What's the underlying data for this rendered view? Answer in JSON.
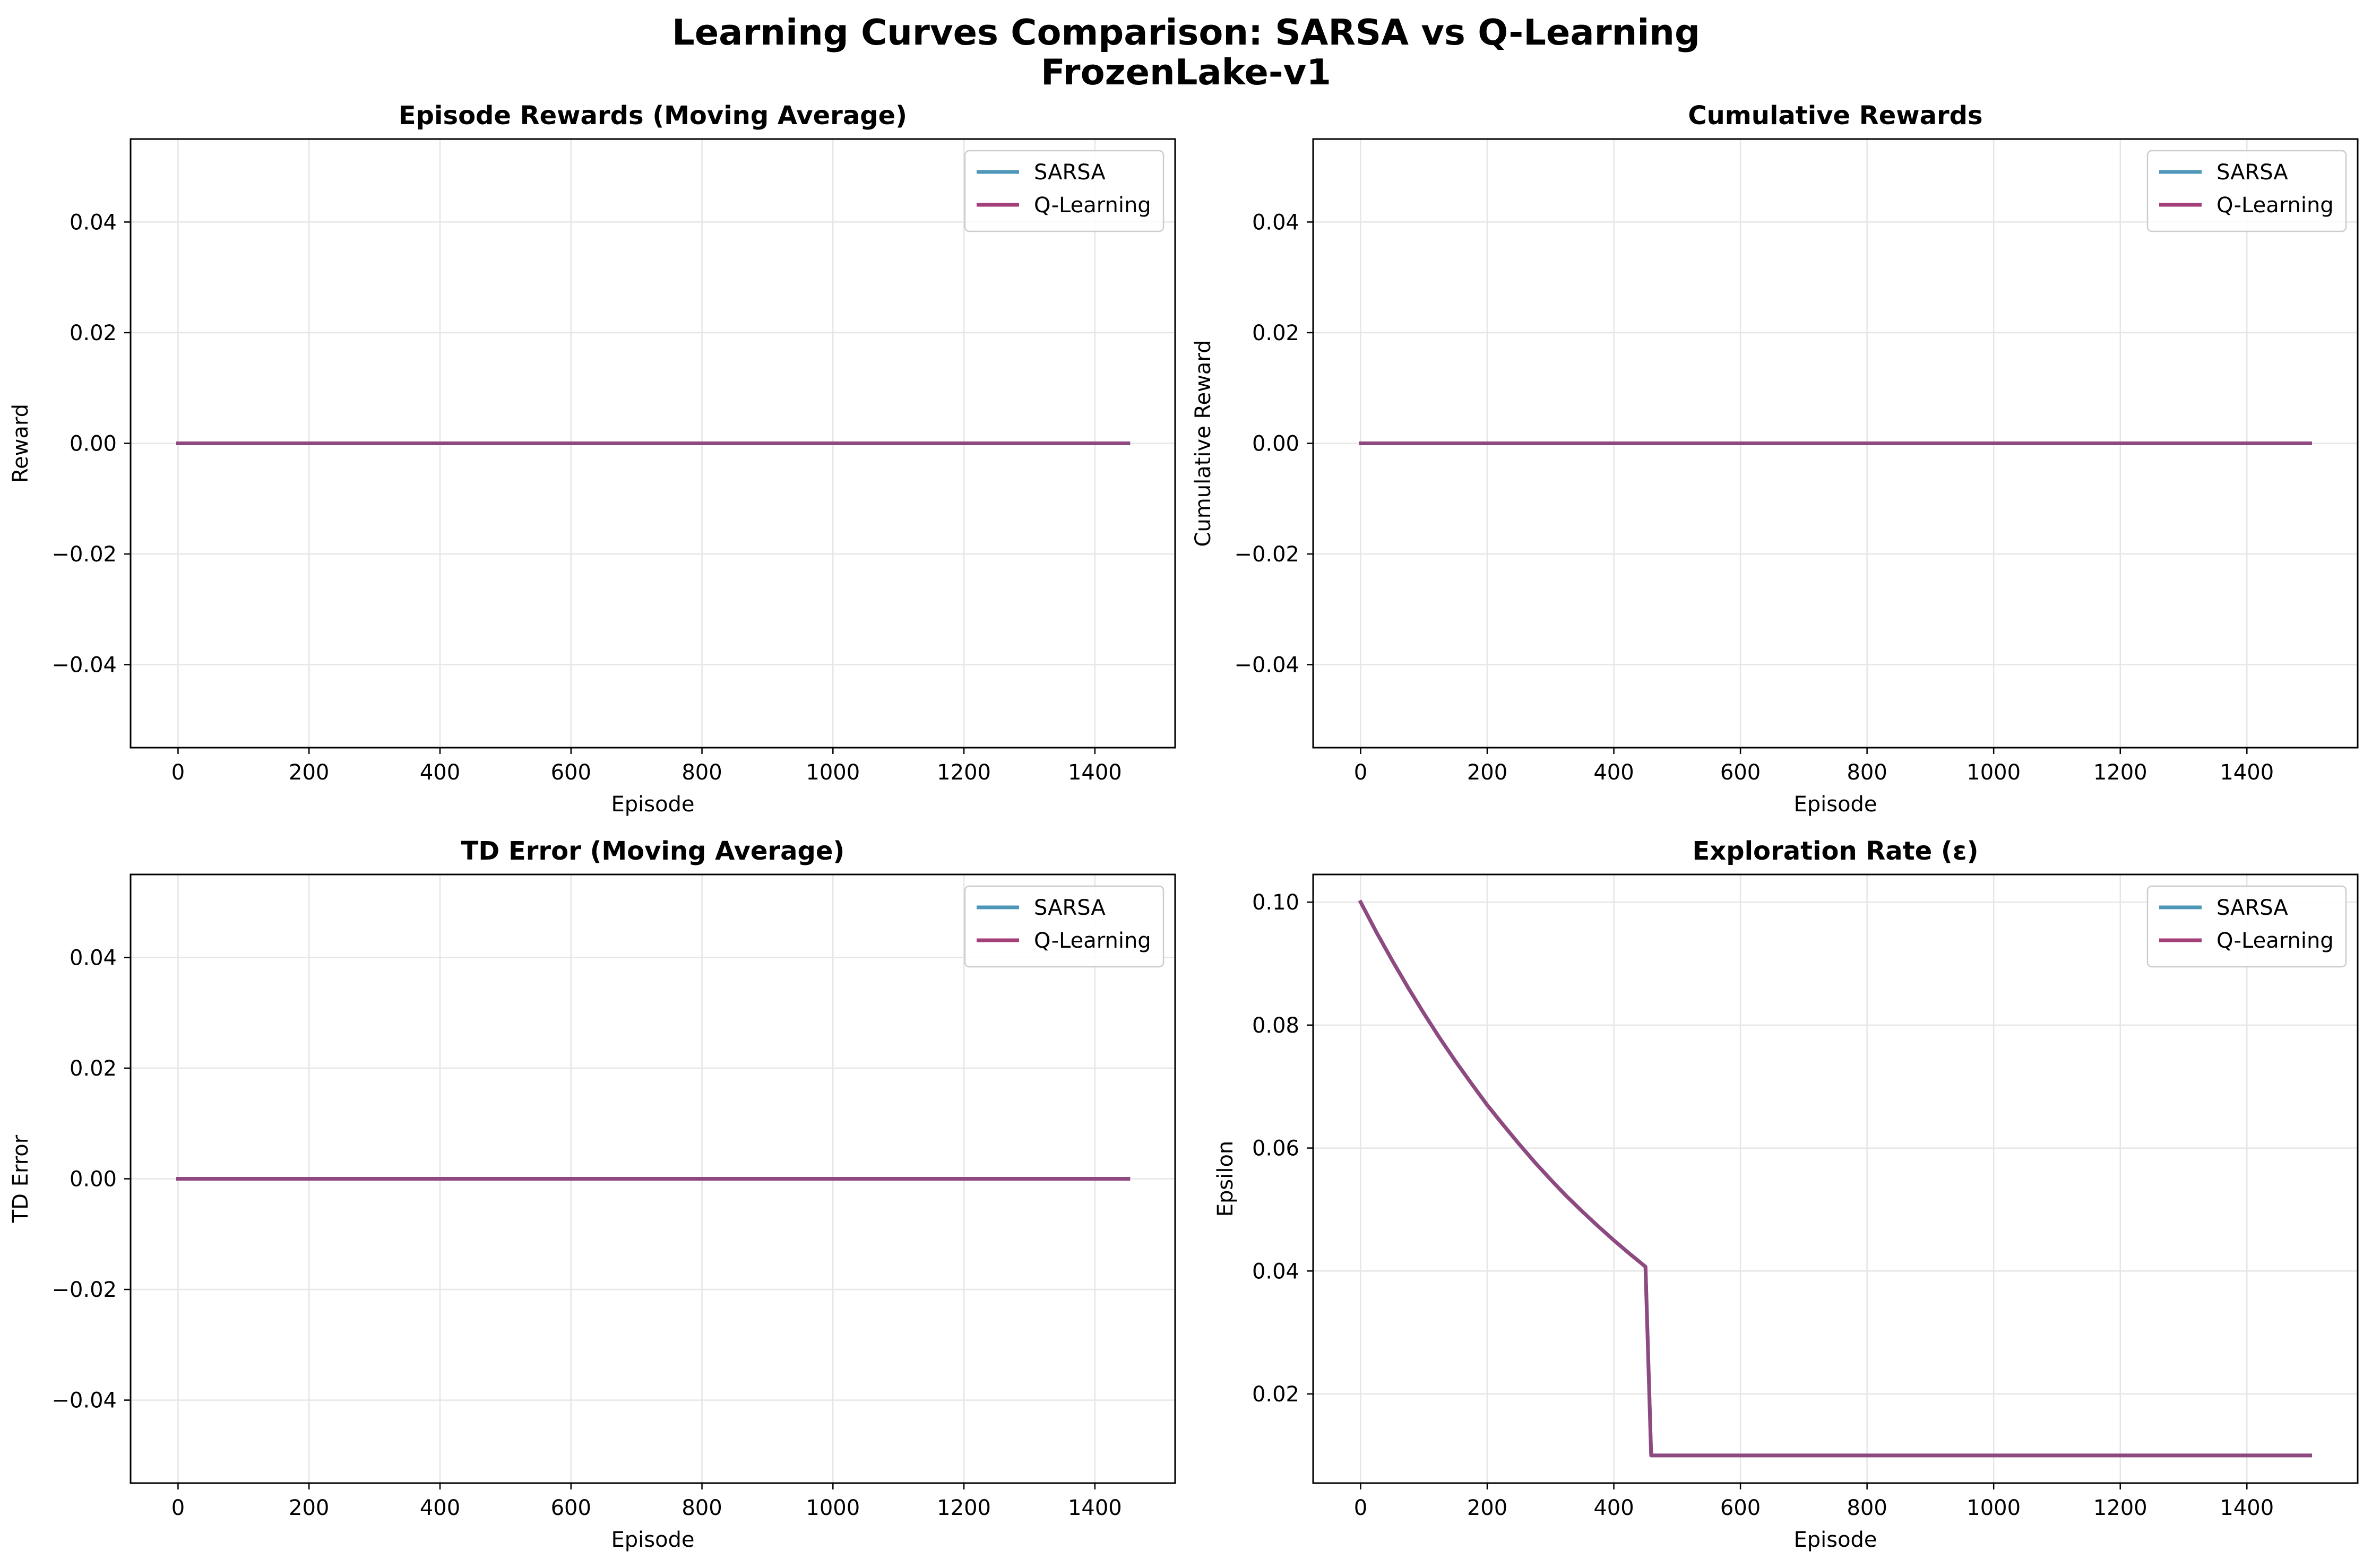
{
  "figure": {
    "title_line1": "Learning Curves Comparison: SARSA vs Q-Learning",
    "title_line2": "FrozenLake-v1"
  },
  "colors": {
    "SARSA": "#4e97b8",
    "Q-Learning": "#a3407a",
    "overlap": "#8e4a80",
    "grid": "#e6e6e6"
  },
  "chart_data": [
    {
      "type": "line",
      "title": "Episode Rewards (Moving Average)",
      "xlabel": "Episode",
      "ylabel": "Reward",
      "xlim": [
        -72.5,
        1522.5
      ],
      "ylim": [
        -0.055,
        0.055
      ],
      "xticks": [
        0,
        200,
        400,
        600,
        800,
        1000,
        1200,
        1400
      ],
      "yticks": [
        -0.04,
        -0.02,
        0.0,
        0.02,
        0.04
      ],
      "ytick_labels": [
        "−0.04",
        "−0.02",
        "0.00",
        "0.02",
        "0.04"
      ],
      "grid": true,
      "legend": "top-right",
      "series": [
        {
          "name": "SARSA",
          "x": [
            0,
            1451
          ],
          "y": [
            0.0,
            0.0
          ]
        },
        {
          "name": "Q-Learning",
          "x": [
            0,
            1451
          ],
          "y": [
            0.0,
            0.0
          ]
        }
      ]
    },
    {
      "type": "line",
      "title": "Cumulative Rewards",
      "xlabel": "Episode",
      "ylabel": "Cumulative Reward",
      "xlim": [
        -75,
        1575
      ],
      "ylim": [
        -0.055,
        0.055
      ],
      "xticks": [
        0,
        200,
        400,
        600,
        800,
        1000,
        1200,
        1400
      ],
      "yticks": [
        -0.04,
        -0.02,
        0.0,
        0.02,
        0.04
      ],
      "ytick_labels": [
        "−0.04",
        "−0.02",
        "0.00",
        "0.02",
        "0.04"
      ],
      "grid": true,
      "legend": "top-right",
      "series": [
        {
          "name": "SARSA",
          "x": [
            0,
            1500
          ],
          "y": [
            0.0,
            0.0
          ]
        },
        {
          "name": "Q-Learning",
          "x": [
            0,
            1500
          ],
          "y": [
            0.0,
            0.0
          ]
        }
      ]
    },
    {
      "type": "line",
      "title": "TD Error (Moving Average)",
      "xlabel": "Episode",
      "ylabel": "TD Error",
      "xlim": [
        -72.5,
        1522.5
      ],
      "ylim": [
        -0.055,
        0.055
      ],
      "xticks": [
        0,
        200,
        400,
        600,
        800,
        1000,
        1200,
        1400
      ],
      "yticks": [
        -0.04,
        -0.02,
        0.0,
        0.02,
        0.04
      ],
      "ytick_labels": [
        "−0.04",
        "−0.02",
        "0.00",
        "0.02",
        "0.04"
      ],
      "grid": true,
      "legend": "top-right",
      "series": [
        {
          "name": "SARSA",
          "x": [
            0,
            1451
          ],
          "y": [
            0.0,
            0.0
          ]
        },
        {
          "name": "Q-Learning",
          "x": [
            0,
            1451
          ],
          "y": [
            0.0,
            0.0
          ]
        }
      ]
    },
    {
      "type": "line",
      "title": "Exploration Rate (ε)",
      "xlabel": "Episode",
      "ylabel": "Epsilon",
      "xlim": [
        -75,
        1575
      ],
      "ylim": [
        0.0055,
        0.1045
      ],
      "xticks": [
        0,
        200,
        400,
        600,
        800,
        1000,
        1200,
        1400
      ],
      "yticks": [
        0.02,
        0.04,
        0.06,
        0.08,
        0.1
      ],
      "ytick_labels": [
        "0.02",
        "0.04",
        "0.06",
        "0.08",
        "0.10"
      ],
      "grid": true,
      "legend": "top-right",
      "series": [
        {
          "name": "SARSA",
          "x": [
            0,
            25,
            50,
            75,
            100,
            125,
            150,
            175,
            200,
            225,
            250,
            275,
            300,
            325,
            350,
            375,
            400,
            425,
            450,
            459,
            500,
            600,
            700,
            800,
            900,
            1000,
            1100,
            1200,
            1300,
            1400,
            1500
          ],
          "y": [
            0.1,
            0.0951,
            0.0905,
            0.0861,
            0.0819,
            0.0779,
            0.0741,
            0.0705,
            0.067,
            0.0638,
            0.0607,
            0.0577,
            0.0549,
            0.0522,
            0.0497,
            0.0473,
            0.045,
            0.0428,
            0.0407,
            0.01,
            0.01,
            0.01,
            0.01,
            0.01,
            0.01,
            0.01,
            0.01,
            0.01,
            0.01,
            0.01,
            0.01
          ]
        },
        {
          "name": "Q-Learning",
          "x": [
            0,
            25,
            50,
            75,
            100,
            125,
            150,
            175,
            200,
            225,
            250,
            275,
            300,
            325,
            350,
            375,
            400,
            425,
            450,
            459,
            500,
            600,
            700,
            800,
            900,
            1000,
            1100,
            1200,
            1300,
            1400,
            1500
          ],
          "y": [
            0.1,
            0.0951,
            0.0905,
            0.0861,
            0.0819,
            0.0779,
            0.0741,
            0.0705,
            0.067,
            0.0638,
            0.0607,
            0.0577,
            0.0549,
            0.0522,
            0.0497,
            0.0473,
            0.045,
            0.0428,
            0.0407,
            0.01,
            0.01,
            0.01,
            0.01,
            0.01,
            0.01,
            0.01,
            0.01,
            0.01,
            0.01,
            0.01,
            0.01
          ]
        }
      ]
    }
  ]
}
